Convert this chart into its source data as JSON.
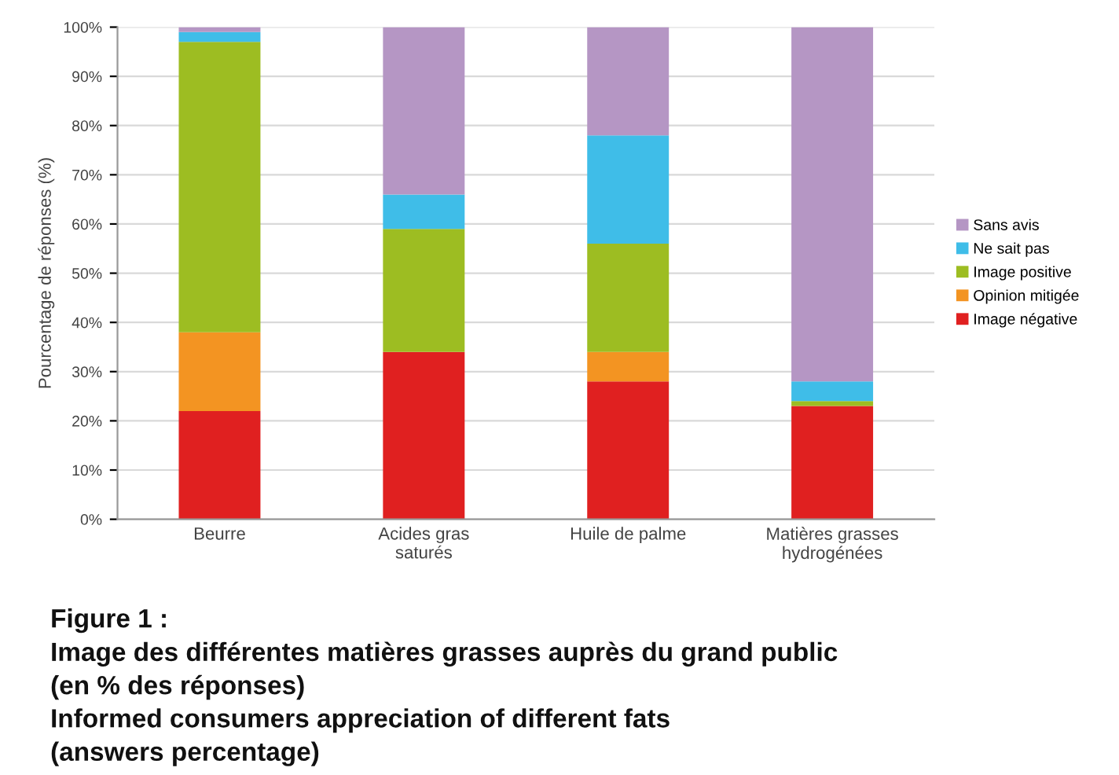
{
  "chart_data": {
    "type": "bar",
    "stacked": true,
    "ylabel": "Pourcentage de réponses (%)",
    "categories": [
      "Beurre",
      "Acides gras\nsaturés",
      "Huile de palme",
      "Matières grasses\nhydrogénées"
    ],
    "series": [
      {
        "name": "Image négative",
        "color": "#e02020",
        "values": [
          22,
          34,
          28,
          23
        ]
      },
      {
        "name": "Opinion mitigée",
        "color": "#f39422",
        "values": [
          16,
          0,
          6,
          0
        ]
      },
      {
        "name": "Image positive",
        "color": "#9dbd22",
        "values": [
          59,
          25,
          22,
          1
        ]
      },
      {
        "name": "Ne sait pas",
        "color": "#3fbde8",
        "values": [
          2,
          7,
          22,
          4
        ]
      },
      {
        "name": "Sans avis",
        "color": "#b596c4",
        "values": [
          1,
          34,
          22,
          72
        ]
      }
    ],
    "ylim": [
      0,
      100
    ],
    "yticks": [
      {
        "value": 0,
        "label": "0%"
      },
      {
        "value": 10,
        "label": "10%"
      },
      {
        "value": 20,
        "label": "20%"
      },
      {
        "value": 30,
        "label": "30%"
      },
      {
        "value": 40,
        "label": "40%"
      },
      {
        "value": 50,
        "label": "50%"
      },
      {
        "value": 60,
        "label": "60%"
      },
      {
        "value": 70,
        "label": "70%"
      },
      {
        "value": 80,
        "label": "80%"
      },
      {
        "value": 90,
        "label": "90%"
      },
      {
        "value": 100,
        "label": "100%"
      }
    ],
    "grid": "y",
    "legend": "right",
    "annotations": [
      "Figure 1 :",
      "Image des différentes matières grasses auprès du grand public",
      "(en % des réponses)",
      "Informed consumers appreciation of different fats",
      "(answers percentage)"
    ]
  }
}
